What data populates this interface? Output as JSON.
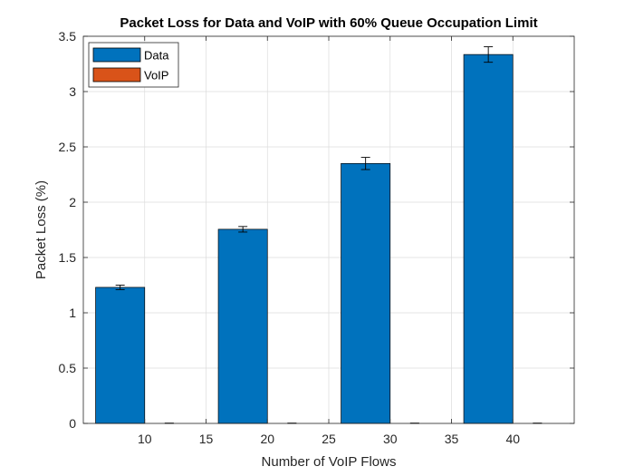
{
  "chart_data": {
    "type": "bar",
    "title": "Packet Loss for Data and VoIP with 60% Queue Occupation Limit",
    "xlabel": "Number of VoIP Flows",
    "ylabel": "Packet Loss (%)",
    "xlim": [
      5,
      45
    ],
    "ylim": [
      0,
      3.5
    ],
    "xticks": [
      10,
      15,
      20,
      25,
      30,
      35,
      40
    ],
    "xtick_labels": [
      "10",
      "15",
      "20",
      "25",
      "30",
      "35",
      "40"
    ],
    "yticks": [
      0,
      0.5,
      1,
      1.5,
      2,
      2.5,
      3,
      3.5
    ],
    "ytick_labels": [
      "0",
      "0.5",
      "1",
      "1.5",
      "2",
      "2.5",
      "3",
      "3.5"
    ],
    "grid": true,
    "legend_position": "top-left",
    "categories": [
      10,
      20,
      30,
      40
    ],
    "series": [
      {
        "name": "Data",
        "color": "#0072BD",
        "values": [
          1.23,
          1.755,
          2.35,
          3.335
        ],
        "errors": [
          0.02,
          0.025,
          0.055,
          0.07
        ]
      },
      {
        "name": "VoIP",
        "color": "#D95319",
        "values": [
          0,
          0,
          0,
          0
        ],
        "errors": [
          0.003,
          0.003,
          0.003,
          0.003
        ]
      }
    ]
  }
}
